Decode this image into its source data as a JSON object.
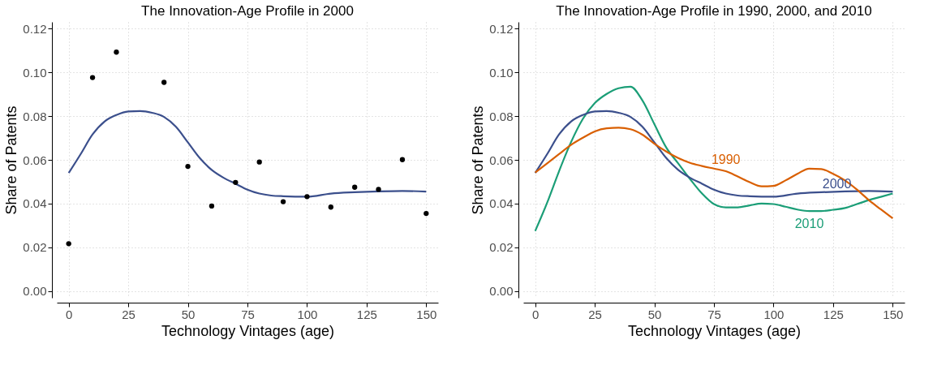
{
  "chart_data": [
    {
      "type": "scatter",
      "title": "The Innovation-Age Profile in 2000",
      "xlabel": "Technology Vintages (age)",
      "ylabel": "Share of Patents",
      "xlim": [
        -5,
        155
      ],
      "ylim": [
        -0.003,
        0.123
      ],
      "xticks": [
        0,
        25,
        50,
        75,
        100,
        125,
        150
      ],
      "yticks": [
        {
          "value": 0,
          "label": "0.00"
        },
        {
          "value": 0.02,
          "label": "0.02"
        },
        {
          "value": 0.04,
          "label": "0.04"
        },
        {
          "value": 0.06,
          "label": "0.06"
        },
        {
          "value": 0.08,
          "label": "0.08"
        },
        {
          "value": 0.1,
          "label": "0.10"
        },
        {
          "value": 0.12,
          "label": "0.12"
        }
      ],
      "grid": true,
      "series": [
        {
          "type": "scatter",
          "color": "#000000",
          "marker": "circle",
          "x": [
            0,
            10,
            20,
            40,
            50,
            60,
            70,
            80,
            90,
            100,
            110,
            120,
            130,
            140,
            150
          ],
          "values": [
            0.0217,
            0.0976,
            0.1092,
            0.0954,
            0.057,
            0.0389,
            0.0497,
            0.059,
            0.0409,
            0.0432,
            0.0384,
            0.0475,
            0.0465,
            0.0601,
            0.0355
          ]
        },
        {
          "type": "line",
          "color": "#3b4f8c",
          "line_style": "solid",
          "x": [
            0,
            5,
            10,
            15,
            20,
            25,
            30,
            35,
            40,
            45,
            50,
            55,
            60,
            65,
            70,
            75,
            80,
            85,
            90,
            100,
            110,
            120,
            130,
            140,
            150
          ],
          "values": [
            0.054,
            0.0626,
            0.0716,
            0.0775,
            0.0805,
            0.0821,
            0.0823,
            0.0815,
            0.0796,
            0.0751,
            0.068,
            0.0608,
            0.0554,
            0.0518,
            0.0491,
            0.0464,
            0.0446,
            0.0437,
            0.0434,
            0.0432,
            0.0446,
            0.0452,
            0.0456,
            0.0458,
            0.0455
          ]
        }
      ]
    },
    {
      "type": "line",
      "title": "The Innovation-Age Profile in 1990, 2000, and 2010",
      "xlabel": "Technology Vintages (age)",
      "ylabel": "Share of Patents",
      "xlim": [
        -5,
        155
      ],
      "ylim": [
        -0.003,
        0.123
      ],
      "xticks": [
        0,
        25,
        50,
        75,
        100,
        125,
        150
      ],
      "yticks": [
        {
          "value": 0,
          "label": "0.00"
        },
        {
          "value": 0.02,
          "label": "0.02"
        },
        {
          "value": 0.04,
          "label": "0.04"
        },
        {
          "value": 0.06,
          "label": "0.06"
        },
        {
          "value": 0.08,
          "label": "0.08"
        },
        {
          "value": 0.1,
          "label": "0.10"
        },
        {
          "value": 0.12,
          "label": "0.12"
        }
      ],
      "grid": true,
      "line_style": "solid",
      "series": [
        {
          "name": "1990",
          "color": "#d95f02",
          "x": [
            0,
            5,
            10,
            15,
            20,
            25,
            30,
            35,
            40,
            45,
            50,
            55,
            60,
            65,
            70,
            75,
            80,
            85,
            90,
            95,
            100,
            105,
            110,
            115,
            120,
            125,
            130,
            135,
            140,
            145,
            150
          ],
          "values": [
            0.0542,
            0.0584,
            0.0626,
            0.0668,
            0.0701,
            0.073,
            0.0744,
            0.0747,
            0.074,
            0.0715,
            0.0674,
            0.0638,
            0.0608,
            0.0586,
            0.0572,
            0.056,
            0.0548,
            0.0524,
            0.0498,
            0.0479,
            0.0481,
            0.0506,
            0.0536,
            0.056,
            0.0558,
            0.0536,
            0.0506,
            0.0464,
            0.0416,
            0.0374,
            0.0333
          ]
        },
        {
          "name": "2000",
          "color": "#3b4f8c",
          "x": [
            0,
            5,
            10,
            15,
            20,
            25,
            30,
            35,
            40,
            45,
            50,
            55,
            60,
            65,
            70,
            75,
            80,
            85,
            90,
            100,
            110,
            120,
            130,
            140,
            150
          ],
          "values": [
            0.054,
            0.0626,
            0.0716,
            0.0775,
            0.0805,
            0.0821,
            0.0823,
            0.0815,
            0.0796,
            0.0751,
            0.068,
            0.0608,
            0.0554,
            0.0518,
            0.0491,
            0.0464,
            0.0446,
            0.0437,
            0.0434,
            0.0432,
            0.0446,
            0.0452,
            0.0456,
            0.0458,
            0.0455
          ]
        },
        {
          "name": "2010",
          "color": "#1b9e77",
          "x": [
            0,
            5,
            10,
            15,
            20,
            25,
            30,
            35,
            40,
            45,
            50,
            55,
            60,
            65,
            70,
            75,
            80,
            85,
            90,
            95,
            100,
            105,
            110,
            115,
            120,
            125,
            130,
            135,
            140,
            145,
            150
          ],
          "values": [
            0.0275,
            0.0404,
            0.0548,
            0.068,
            0.0787,
            0.0859,
            0.0901,
            0.0927,
            0.0934,
            0.0871,
            0.0763,
            0.0656,
            0.0584,
            0.0512,
            0.0446,
            0.0398,
            0.0383,
            0.0383,
            0.0392,
            0.04,
            0.0398,
            0.0386,
            0.0373,
            0.0366,
            0.0366,
            0.0372,
            0.038,
            0.0398,
            0.0416,
            0.0431,
            0.0446
          ]
        }
      ]
    }
  ]
}
